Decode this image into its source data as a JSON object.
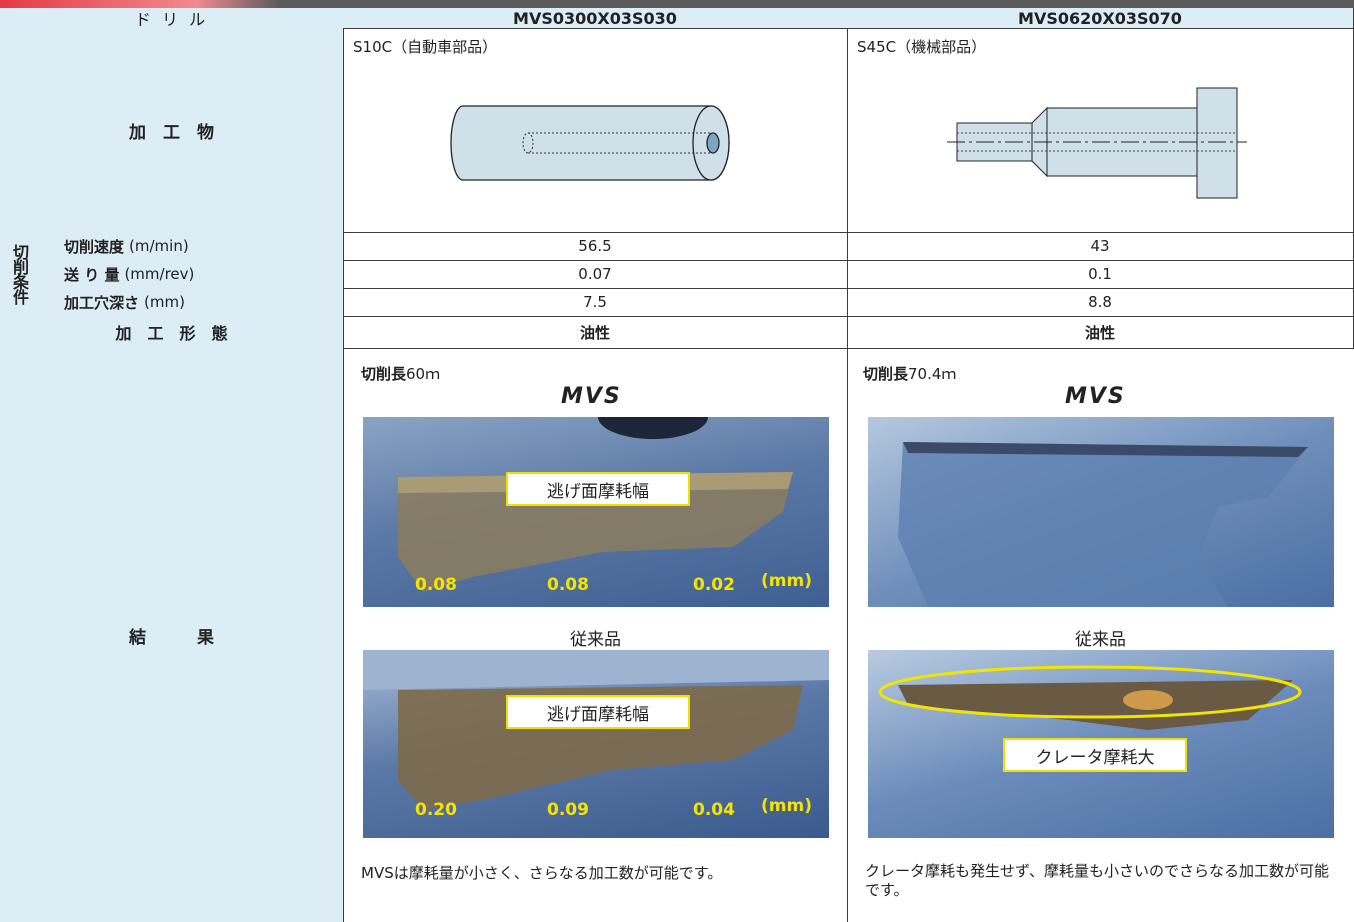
{
  "header": [
    "ド リ ル",
    "MVS0300X03S030",
    "MVS0620X03S070"
  ],
  "workpiece": {
    "label": "加　工　物",
    "cells": [
      "S10C（自動車部品）",
      "S45C（機械部品）"
    ]
  },
  "conditions": {
    "label": "切削条件",
    "rows": [
      {
        "label": "切削速度",
        "unit": "(m/min)",
        "values": [
          56.5,
          43
        ]
      },
      {
        "label": "送 り 量",
        "unit": "(mm/rev)",
        "values": [
          0.07,
          0.1
        ]
      },
      {
        "label": "加工穴深さ",
        "unit": "(mm)",
        "values": [
          7.5,
          8.8
        ]
      }
    ]
  },
  "mode": {
    "label": "加　工　形　態",
    "values": [
      "油性",
      "油性"
    ]
  },
  "result": {
    "label": "結　　　果",
    "cols": [
      {
        "length_label": "切削長",
        "length": "60ｍ",
        "brand": "MVS",
        "mvs_photo": {
          "label": "逃げ面摩耗幅",
          "wear": [
            "0.08",
            "0.08",
            "0.02"
          ],
          "unit": "(mm)"
        },
        "conventional": "従来品",
        "conv_photo": {
          "label": "逃げ面摩耗幅",
          "wear": [
            "0.20",
            "0.09",
            "0.04"
          ],
          "unit": "(mm)"
        },
        "note": "MVSは摩耗量が小さく、さらなる加工数が可能です。"
      },
      {
        "length_label": "切削長",
        "length": "70.4ｍ",
        "brand": "MVS",
        "conventional": "従来品",
        "conv_photo": {
          "label": "クレータ摩耗大"
        },
        "note": "クレータ摩耗も発生せず、摩耗量も小さいのでさらなる加工数が可能です。"
      }
    ]
  }
}
